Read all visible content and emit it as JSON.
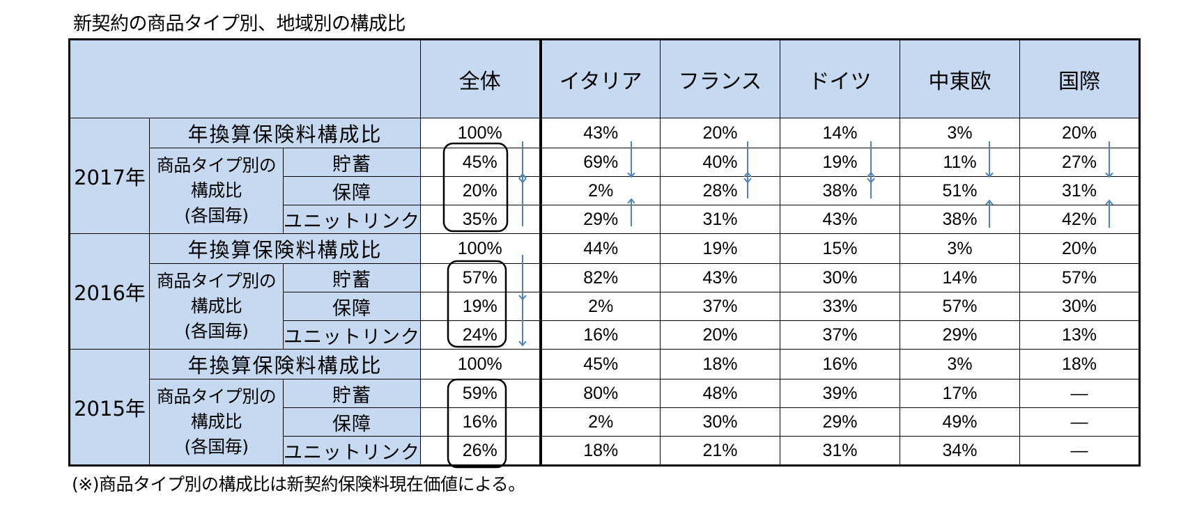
{
  "chart_data": {
    "type": "table",
    "title": "新契約の商品タイプ別、地域別の構成比",
    "note": "(※)商品タイプ別の構成比は新契約保険料現在価値による。",
    "columns": [
      "全体",
      "イタリア",
      "フランス",
      "ドイツ",
      "中東欧",
      "国際"
    ],
    "row_labels": {
      "total": "年換算保険料構成比",
      "product_type": "商品タイプ別の構成比(各国毎)",
      "product_type_lines": [
        "商品タイプ別の",
        "構成比",
        "(各国毎)"
      ],
      "savings": "貯蓄",
      "protection": "保障",
      "unit_linked": "ユニットリンク"
    },
    "years": [
      {
        "year": "2017年",
        "total": [
          "100%",
          "43%",
          "20%",
          "14%",
          "3%",
          "20%"
        ],
        "savings": [
          "45%",
          "69%",
          "40%",
          "19%",
          "11%",
          "27%"
        ],
        "protection": [
          "20%",
          "2%",
          "28%",
          "38%",
          "51%",
          "31%"
        ],
        "unit_linked": [
          "35%",
          "29%",
          "31%",
          "43%",
          "38%",
          "42%"
        ]
      },
      {
        "year": "2016年",
        "total": [
          "100%",
          "44%",
          "19%",
          "15%",
          "3%",
          "20%"
        ],
        "savings": [
          "57%",
          "82%",
          "43%",
          "30%",
          "14%",
          "57%"
        ],
        "protection": [
          "19%",
          "2%",
          "37%",
          "33%",
          "57%",
          "30%"
        ],
        "unit_linked": [
          "24%",
          "16%",
          "20%",
          "37%",
          "29%",
          "13%"
        ]
      },
      {
        "year": "2015年",
        "total": [
          "100%",
          "45%",
          "18%",
          "16%",
          "3%",
          "18%"
        ],
        "savings": [
          "59%",
          "80%",
          "48%",
          "39%",
          "17%",
          "—"
        ],
        "protection": [
          "16%",
          "2%",
          "30%",
          "29%",
          "49%",
          "—"
        ],
        "unit_linked": [
          "26%",
          "18%",
          "21%",
          "31%",
          "34%",
          "—"
        ]
      }
    ]
  },
  "colors": {
    "header_fill": "#c5d9f1",
    "arrow": "#4f81bd",
    "border": "#000000"
  }
}
